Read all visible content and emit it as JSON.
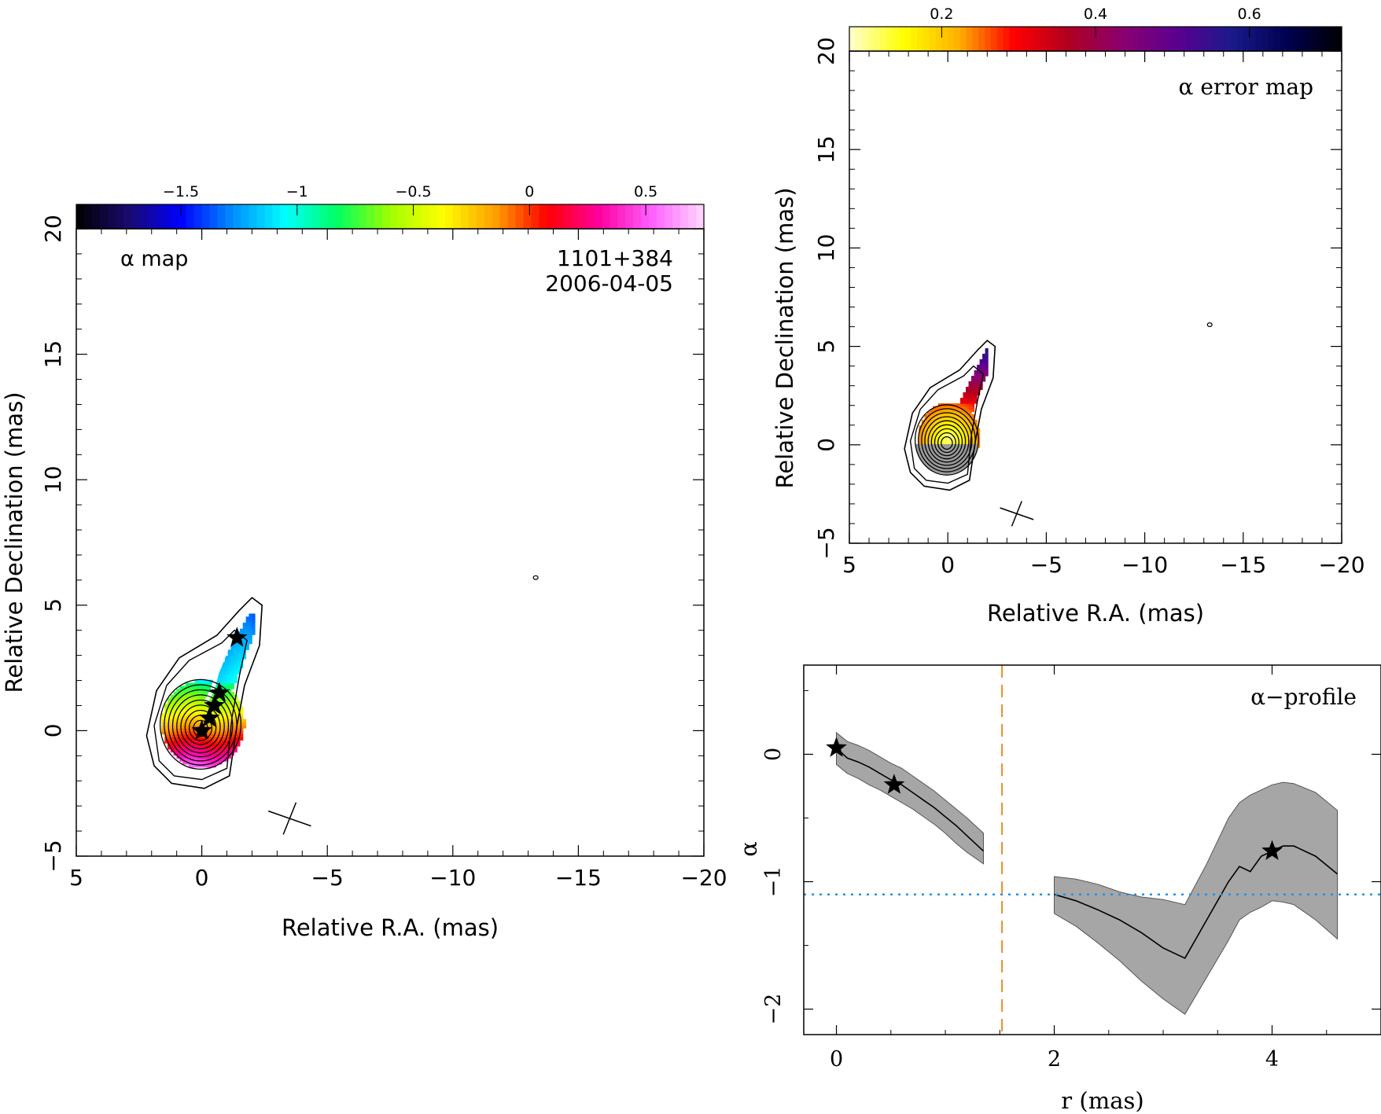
{
  "chart_data": [
    {
      "type": "heatmap",
      "panel": "alpha-map",
      "label": "α map",
      "source": "1101+384",
      "epoch": "2006-04-05",
      "xlabel": "Relative R.A. (mas)",
      "ylabel": "Relative Declination (mas)",
      "xlim": [
        5,
        -20
      ],
      "ylim": [
        -5,
        20
      ],
      "x_ticks": [
        5,
        0,
        -5,
        -10,
        -15,
        -20
      ],
      "y_ticks": [
        -5,
        0,
        5,
        10,
        15,
        20
      ],
      "x_tick_labels": [
        "5",
        "0",
        "−5",
        "−10",
        "−15",
        "−20"
      ],
      "y_tick_labels": [
        "−5",
        "0",
        "5",
        "10",
        "15",
        "20"
      ],
      "colorbar": {
        "range": [
          -1.95,
          0.75
        ],
        "ticks": [
          -1.5,
          -1,
          -0.5,
          0,
          0.5
        ],
        "tick_labels": [
          "−1.5",
          "−1",
          "−0.5",
          "0",
          "0.5"
        ],
        "colormap": [
          "#000000",
          "#1a0a6e",
          "#0000ff",
          "#0090ff",
          "#00ffff",
          "#00ff60",
          "#a0ff00",
          "#ffff00",
          "#ffa000",
          "#ff0000",
          "#ff00a0",
          "#ff60ff",
          "#ffd8ff"
        ]
      },
      "stars": [
        [
          0,
          0
        ],
        [
          -0.3,
          0.5
        ],
        [
          -0.5,
          1.0
        ],
        [
          -0.7,
          1.5
        ],
        [
          -1.4,
          3.7
        ]
      ],
      "beam_cross": [
        -3.5,
        -3.5
      ],
      "isolated_contour": [
        -13.3,
        6.1
      ]
    },
    {
      "type": "heatmap",
      "panel": "alpha-error-map",
      "label": "α error map",
      "xlabel": "Relative R.A. (mas)",
      "ylabel": "Relative Declination (mas)",
      "xlim": [
        5,
        -20
      ],
      "ylim": [
        -5,
        20
      ],
      "x_ticks": [
        5,
        0,
        -5,
        -10,
        -15,
        -20
      ],
      "y_ticks": [
        -5,
        0,
        5,
        10,
        15,
        20
      ],
      "x_tick_labels": [
        "5",
        "0",
        "−5",
        "−10",
        "−15",
        "−20"
      ],
      "y_tick_labels": [
        "−5",
        "0",
        "5",
        "10",
        "15",
        "20"
      ],
      "colorbar": {
        "range": [
          0.08,
          0.72
        ],
        "ticks": [
          0.2,
          0.4,
          0.6
        ],
        "tick_labels": [
          "0.2",
          "0.4",
          "0.6"
        ],
        "colormap": [
          "#ffffd0",
          "#ffff00",
          "#ffb000",
          "#ff0000",
          "#b00020",
          "#8a0070",
          "#5a0090",
          "#1a1a8a",
          "#000050",
          "#000000"
        ]
      },
      "beam_cross": [
        -3.5,
        -3.5
      ],
      "isolated_contour": [
        -13.3,
        6.1
      ]
    },
    {
      "type": "line",
      "panel": "alpha-profile",
      "label": "α−profile",
      "xlabel": "r (mas)",
      "ylabel": "α",
      "xlim": [
        -0.3,
        5.0
      ],
      "ylim": [
        -2.2,
        0.7
      ],
      "x_ticks": [
        0,
        2,
        4
      ],
      "y_ticks": [
        -2,
        -1,
        0
      ],
      "x_tick_labels": [
        "0",
        "2",
        "4"
      ],
      "y_tick_labels": [
        "−2",
        "−1",
        "0"
      ],
      "series": [
        {
          "x": [
            0,
            0.1,
            0.2,
            0.3,
            0.4,
            0.5,
            0.6,
            0.7,
            0.8,
            0.9,
            1.0,
            1.1,
            1.2,
            1.35
          ],
          "y": [
            0.05,
            -0.03,
            -0.06,
            -0.1,
            -0.15,
            -0.2,
            -0.24,
            -0.3,
            -0.36,
            -0.42,
            -0.49,
            -0.56,
            -0.64,
            -0.76
          ],
          "lower": [
            -0.08,
            -0.15,
            -0.19,
            -0.24,
            -0.28,
            -0.33,
            -0.38,
            -0.43,
            -0.49,
            -0.55,
            -0.62,
            -0.7,
            -0.77,
            -0.86
          ],
          "upper": [
            0.17,
            0.1,
            0.07,
            0.03,
            -0.02,
            -0.07,
            -0.11,
            -0.17,
            -0.23,
            -0.29,
            -0.36,
            -0.43,
            -0.5,
            -0.62
          ]
        },
        {
          "x": [
            2.0,
            2.2,
            2.4,
            2.6,
            2.8,
            3.0,
            3.2,
            3.4,
            3.6,
            3.7,
            3.8,
            3.9,
            4.0,
            4.1,
            4.2,
            4.4,
            4.6
          ],
          "y": [
            -1.1,
            -1.15,
            -1.22,
            -1.3,
            -1.4,
            -1.52,
            -1.6,
            -1.3,
            -1.0,
            -0.88,
            -0.92,
            -0.8,
            -0.76,
            -0.72,
            -0.72,
            -0.8,
            -0.94
          ],
          "lower": [
            -1.25,
            -1.35,
            -1.48,
            -1.62,
            -1.78,
            -1.92,
            -2.04,
            -1.75,
            -1.46,
            -1.3,
            -1.24,
            -1.2,
            -1.15,
            -1.16,
            -1.18,
            -1.3,
            -1.45
          ],
          "upper": [
            -0.96,
            -0.98,
            -1.02,
            -1.08,
            -1.12,
            -1.14,
            -1.18,
            -0.86,
            -0.5,
            -0.38,
            -0.32,
            -0.28,
            -0.24,
            -0.22,
            -0.23,
            -0.3,
            -0.44
          ]
        }
      ],
      "stars": [
        [
          0,
          0.05
        ],
        [
          0.53,
          -0.24
        ],
        [
          4.0,
          -0.76
        ]
      ],
      "hline": -1.1,
      "vline": 1.52
    }
  ]
}
